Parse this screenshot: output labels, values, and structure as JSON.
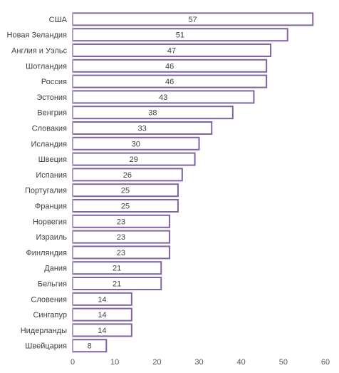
{
  "chart_data": {
    "type": "bar",
    "orientation": "horizontal",
    "categories": [
      "США",
      "Новая Зеландия",
      "Англия и Уэльс",
      "Шотландия",
      "Россия",
      "Эстония",
      "Венгрия",
      "Словакия",
      "Исландия",
      "Швеция",
      "Испания",
      "Португалия",
      "Франция",
      "Норвегия",
      "Израиль",
      "Финляндия",
      "Дания",
      "Бельгия",
      "Словения",
      "Сингапур",
      "Нидерланды",
      "Швейцария"
    ],
    "values": [
      57,
      51,
      47,
      46,
      46,
      43,
      38,
      33,
      30,
      29,
      26,
      25,
      25,
      23,
      23,
      23,
      21,
      21,
      14,
      14,
      14,
      8
    ],
    "xlim": [
      0,
      60
    ],
    "xticks": [
      "0",
      "10",
      "20",
      "30",
      "40",
      "50",
      "60"
    ],
    "grid": false,
    "legend": "none",
    "colors": {
      "bar_fill": "#ffffff",
      "bar_border": "#8064a2",
      "text": "#404040"
    }
  }
}
